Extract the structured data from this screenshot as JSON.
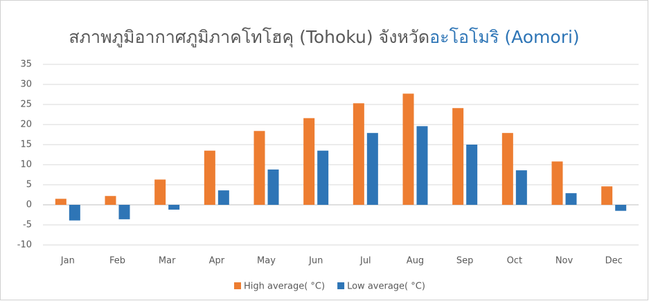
{
  "chart_data": {
    "type": "bar",
    "title_parts": [
      "สภาพภูมิอากาศภูมิภาคโทโฮคุ (Tohoku) จังหวัด",
      "อะโอโมริ (Aomori)"
    ],
    "title_colors": [
      "#595959",
      "#2e75b6"
    ],
    "categories": [
      "Jan",
      "Feb",
      "Mar",
      "Apr",
      "May",
      "Jun",
      "Jul",
      "Aug",
      "Sep",
      "Oct",
      "Nov",
      "Dec"
    ],
    "series": [
      {
        "name": "High average( °C)",
        "color": "#ed7d31",
        "values": [
          1.5,
          2.2,
          6.3,
          13.5,
          18.4,
          21.6,
          25.3,
          27.7,
          24.1,
          17.9,
          10.8,
          4.6
        ]
      },
      {
        "name": "Low average( °C)",
        "color": "#2e75b6",
        "values": [
          -3.9,
          -3.6,
          -1.2,
          3.6,
          8.8,
          13.5,
          17.9,
          19.6,
          15.0,
          8.6,
          2.9,
          -1.5
        ]
      }
    ],
    "ylim": [
      -10,
      35
    ],
    "yticks": [
      -10,
      -5,
      0,
      5,
      10,
      15,
      20,
      25,
      30,
      35
    ],
    "grid": true,
    "legend": "bottom"
  }
}
